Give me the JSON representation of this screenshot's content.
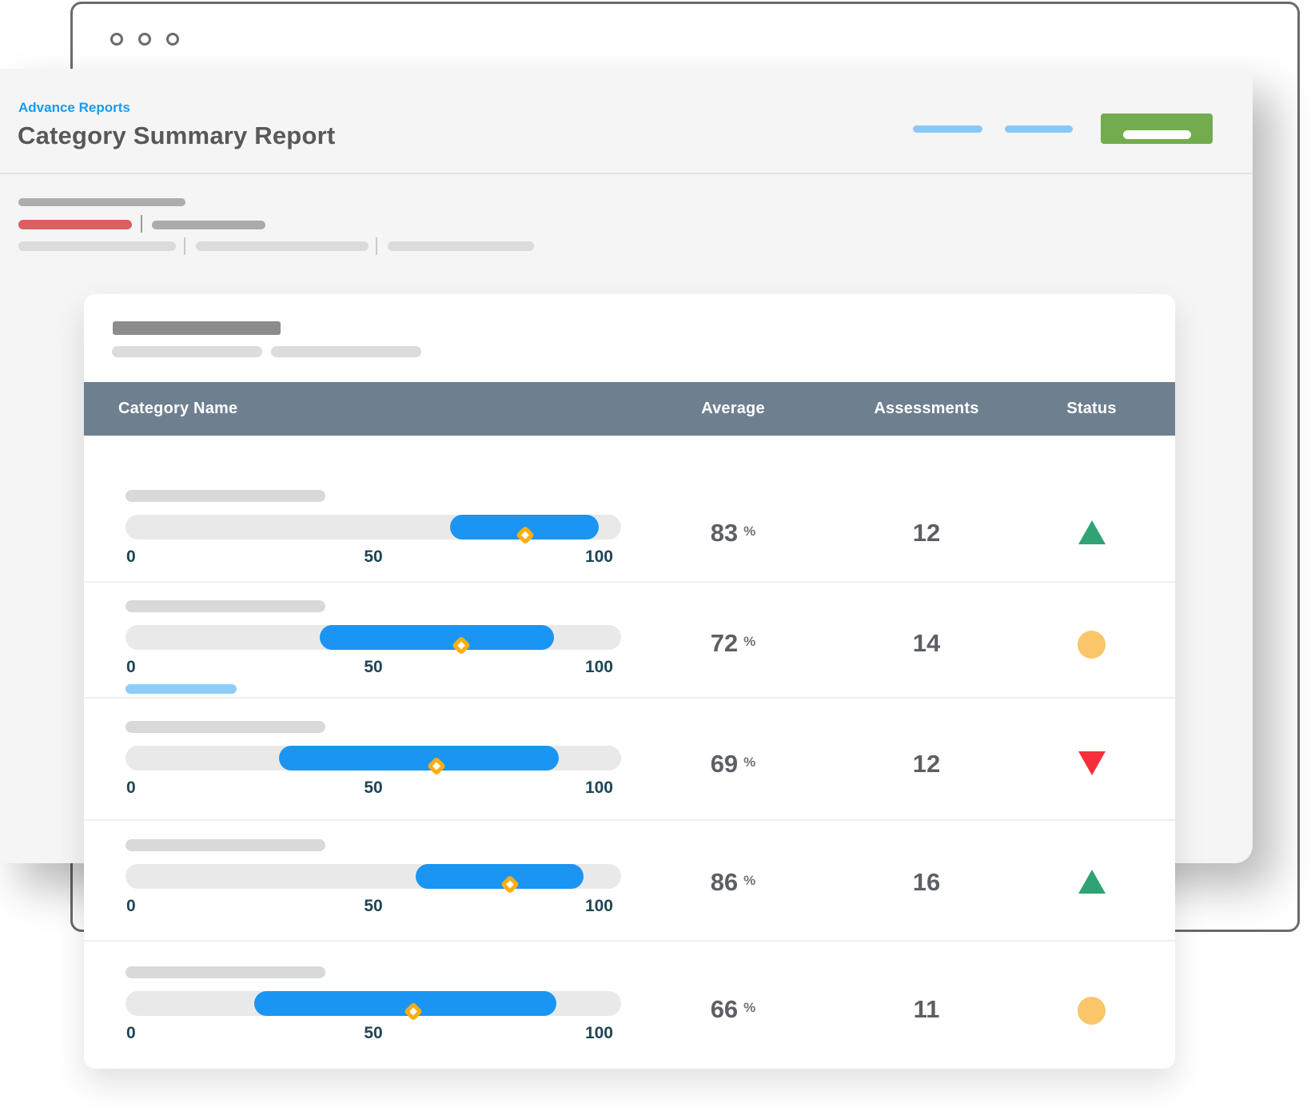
{
  "header": {
    "breadcrumb": "Advance Reports",
    "title": "Category Summary Report"
  },
  "table": {
    "columns": [
      "Category Name",
      "Average",
      "Assessments",
      "Status"
    ],
    "ticks": [
      "0",
      "50",
      "100"
    ],
    "unit": "%",
    "axis_range": [
      0,
      100
    ],
    "rows": [
      {
        "average": "83",
        "assessments": "12",
        "status": "up",
        "fill_start": 65.5,
        "fill_end": 95.5,
        "marker": 80.6,
        "sub_bar": false
      },
      {
        "average": "72",
        "assessments": "14",
        "status": "neutral",
        "fill_start": 39.2,
        "fill_end": 86.5,
        "marker": 67.7,
        "sub_bar": true
      },
      {
        "average": "69",
        "assessments": "12",
        "status": "down",
        "fill_start": 31.0,
        "fill_end": 87.5,
        "marker": 62.7,
        "sub_bar": false
      },
      {
        "average": "86",
        "assessments": "16",
        "status": "up",
        "fill_start": 58.5,
        "fill_end": 92.5,
        "marker": 77.5,
        "sub_bar": false
      },
      {
        "average": "66",
        "assessments": "11",
        "status": "neutral",
        "fill_start": 26.0,
        "fill_end": 87.0,
        "marker": 58.0,
        "sub_bar": false
      }
    ]
  },
  "colors": {
    "accent_blue": "#189BF2",
    "title_grey": "#58585A",
    "fill_blue": "#1B95F2",
    "track_grey": "#E9E9E9",
    "label_grey": "#D9D9D9",
    "sub_bar_blue": "#8FCDF9",
    "tick_navy": "#1E4553",
    "value_grey": "#5C6065",
    "slate_header": "#6E8090",
    "green": "#2FA374",
    "red": "#F5303C",
    "yellow": "#FBC56A",
    "button_green": "#72AC4F",
    "pill_blue": "#87C9F8",
    "bar_red": "#DB5E61",
    "marker_orange": "#FCAE11"
  }
}
